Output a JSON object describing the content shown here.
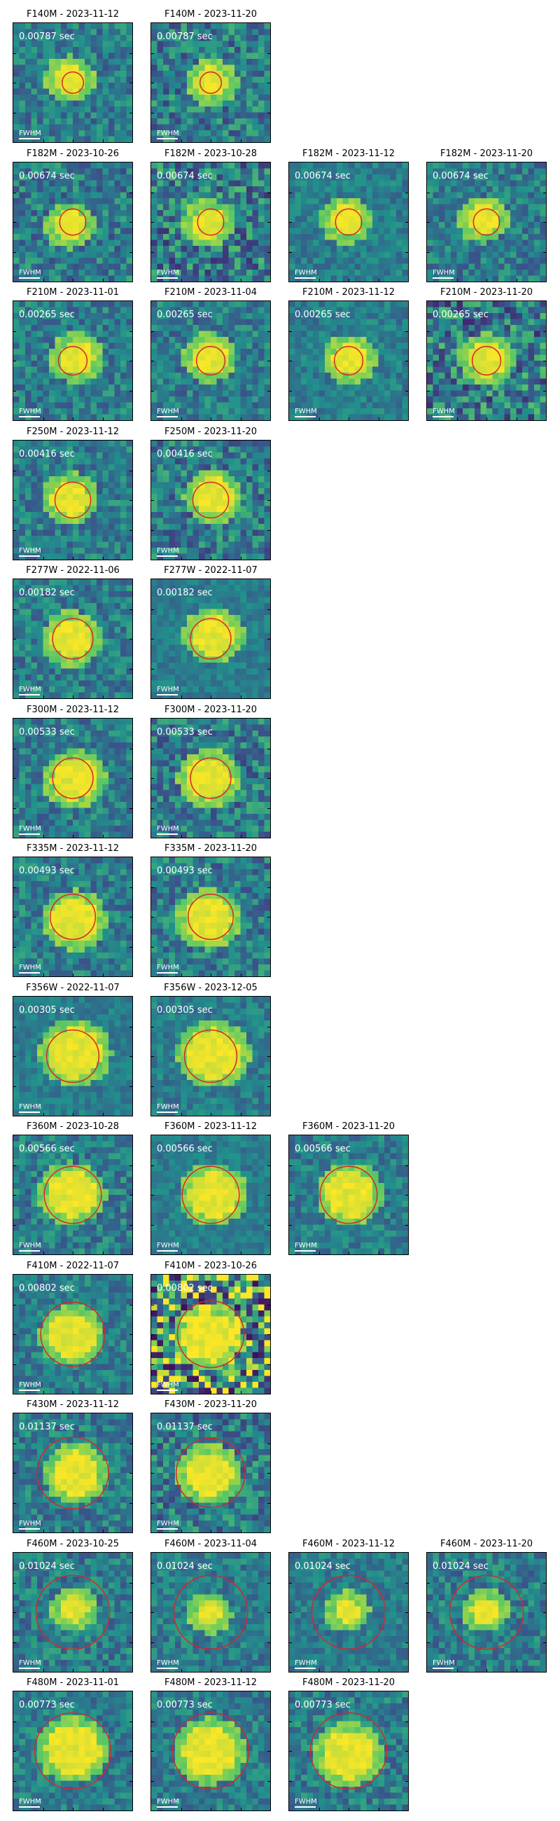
{
  "colors": {
    "background": "#ffffff",
    "image_low": "#3b0f70",
    "image_mid": "#21918c",
    "image_high": "#fde725",
    "aperture": "#d62728",
    "overlay_text": "#ffffff"
  },
  "scale_bar_label": "FWHM",
  "rows": [
    {
      "filter": "F140M",
      "panels": [
        {
          "title": "F140M - 2023-11-12",
          "exposure": "0.00787 sec",
          "noise": 0.35,
          "star": 0.28,
          "aperture": 0.18
        },
        {
          "title": "F140M - 2023-11-20",
          "exposure": "0.00787 sec",
          "noise": 0.45,
          "star": 0.28,
          "aperture": 0.18
        }
      ]
    },
    {
      "filter": "F182M",
      "panels": [
        {
          "title": "F182M - 2023-10-26",
          "exposure": "0.00674 sec",
          "noise": 0.4,
          "star": 0.28,
          "aperture": 0.22
        },
        {
          "title": "F182M - 2023-10-28",
          "exposure": "0.00674 sec",
          "noise": 0.55,
          "star": 0.28,
          "aperture": 0.22
        },
        {
          "title": "F182M - 2023-11-12",
          "exposure": "0.00674 sec",
          "noise": 0.25,
          "star": 0.28,
          "aperture": 0.22
        },
        {
          "title": "F182M - 2023-11-20",
          "exposure": "0.00674 sec",
          "noise": 0.35,
          "star": 0.28,
          "aperture": 0.22
        }
      ]
    },
    {
      "filter": "F210M",
      "panels": [
        {
          "title": "F210M - 2023-11-01",
          "exposure": "0.00265 sec",
          "noise": 0.35,
          "star": 0.3,
          "aperture": 0.24
        },
        {
          "title": "F210M - 2023-11-04",
          "exposure": "0.00265 sec",
          "noise": 0.35,
          "star": 0.3,
          "aperture": 0.24
        },
        {
          "title": "F210M - 2023-11-12",
          "exposure": "0.00265 sec",
          "noise": 0.25,
          "star": 0.3,
          "aperture": 0.24
        },
        {
          "title": "F210M - 2023-11-20",
          "exposure": "0.00265 sec",
          "noise": 0.6,
          "star": 0.32,
          "aperture": 0.24
        }
      ]
    },
    {
      "filter": "F250M",
      "panels": [
        {
          "title": "F250M - 2023-11-12",
          "exposure": "0.00416 sec",
          "noise": 0.35,
          "star": 0.32,
          "aperture": 0.3
        },
        {
          "title": "F250M - 2023-11-20",
          "exposure": "0.00416 sec",
          "noise": 0.45,
          "star": 0.34,
          "aperture": 0.3
        }
      ]
    },
    {
      "filter": "F277W",
      "panels": [
        {
          "title": "F277W - 2022-11-06",
          "exposure": "0.00182 sec",
          "noise": 0.35,
          "star": 0.36,
          "aperture": 0.34
        },
        {
          "title": "F277W - 2022-11-07",
          "exposure": "0.00182 sec",
          "noise": 0.2,
          "star": 0.36,
          "aperture": 0.34
        }
      ]
    },
    {
      "filter": "F300M",
      "panels": [
        {
          "title": "F300M - 2023-11-12",
          "exposure": "0.00533 sec",
          "noise": 0.35,
          "star": 0.38,
          "aperture": 0.34
        },
        {
          "title": "F300M - 2023-11-20",
          "exposure": "0.00533 sec",
          "noise": 0.45,
          "star": 0.38,
          "aperture": 0.34
        }
      ]
    },
    {
      "filter": "F335M",
      "panels": [
        {
          "title": "F335M - 2023-11-12",
          "exposure": "0.00493 sec",
          "noise": 0.35,
          "star": 0.4,
          "aperture": 0.38
        },
        {
          "title": "F335M - 2023-11-20",
          "exposure": "0.00493 sec",
          "noise": 0.4,
          "star": 0.4,
          "aperture": 0.38
        }
      ]
    },
    {
      "filter": "F356W",
      "panels": [
        {
          "title": "F356W - 2022-11-07",
          "exposure": "0.00305 sec",
          "noise": 0.2,
          "star": 0.46,
          "aperture": 0.44
        },
        {
          "title": "F356W - 2023-12-05",
          "exposure": "0.00305 sec",
          "noise": 0.25,
          "star": 0.46,
          "aperture": 0.44
        }
      ]
    },
    {
      "filter": "F360M",
      "panels": [
        {
          "title": "F360M - 2023-10-28",
          "exposure": "0.00566 sec",
          "noise": 0.35,
          "star": 0.42,
          "aperture": 0.48
        },
        {
          "title": "F360M - 2023-11-12",
          "exposure": "0.00566 sec",
          "noise": 0.2,
          "star": 0.42,
          "aperture": 0.48
        },
        {
          "title": "F360M - 2023-11-20",
          "exposure": "0.00566 sec",
          "noise": 0.3,
          "star": 0.42,
          "aperture": 0.48
        }
      ]
    },
    {
      "filter": "F410M",
      "panels": [
        {
          "title": "F410M - 2022-11-07",
          "exposure": "0.00802 sec",
          "noise": 0.3,
          "star": 0.4,
          "aperture": 0.54
        },
        {
          "title": "F410M - 2023-10-26",
          "exposure": "0.00802 sec",
          "noise": 0.9,
          "star": 0.44,
          "aperture": 0.56
        }
      ]
    },
    {
      "filter": "F430M",
      "panels": [
        {
          "title": "F430M - 2023-11-12",
          "exposure": "0.01137 sec",
          "noise": 0.35,
          "star": 0.4,
          "aperture": 0.6
        },
        {
          "title": "F430M - 2023-11-20",
          "exposure": "0.01137 sec",
          "noise": 0.45,
          "star": 0.4,
          "aperture": 0.58
        }
      ]
    },
    {
      "filter": "F460M",
      "panels": [
        {
          "title": "F460M - 2023-10-25",
          "exposure": "0.01024 sec",
          "noise": 0.35,
          "star": 0.24,
          "aperture": 0.62
        },
        {
          "title": "F460M - 2023-11-04",
          "exposure": "0.01024 sec",
          "noise": 0.3,
          "star": 0.22,
          "aperture": 0.62
        },
        {
          "title": "F460M - 2023-11-12",
          "exposure": "0.01024 sec",
          "noise": 0.25,
          "star": 0.22,
          "aperture": 0.62
        },
        {
          "title": "F460M - 2023-11-20",
          "exposure": "0.01024 sec",
          "noise": 0.35,
          "star": 0.24,
          "aperture": 0.62
        }
      ]
    },
    {
      "filter": "F480M",
      "panels": [
        {
          "title": "F480M - 2023-11-01",
          "exposure": "0.00773 sec",
          "noise": 0.3,
          "star": 0.46,
          "aperture": 0.64
        },
        {
          "title": "F480M - 2023-11-12",
          "exposure": "0.00773 sec",
          "noise": 0.3,
          "star": 0.46,
          "aperture": 0.64
        },
        {
          "title": "F480M - 2023-11-20",
          "exposure": "0.00773 sec",
          "noise": 0.35,
          "star": 0.44,
          "aperture": 0.64
        }
      ]
    }
  ]
}
